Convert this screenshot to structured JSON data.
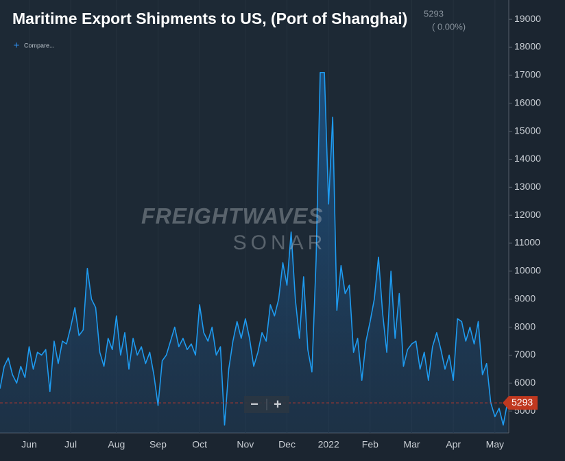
{
  "chart_data": {
    "type": "line",
    "title": "Maritime Export Shipments to US, (Port of Shanghai)",
    "header_value": "5293",
    "header_change": "( 0.00%)",
    "compare_label": "Compare...",
    "watermark": [
      "FREIGHTWAVES",
      "SONAR"
    ],
    "zoom_buttons": [
      "−",
      "+"
    ],
    "last_value": 5293,
    "color": "#1e9bf0",
    "categories": [
      null,
      null,
      null,
      null,
      null,
      null,
      null,
      "Jun",
      null,
      null,
      null,
      null,
      null,
      null,
      null,
      null,
      null,
      "Jul",
      null,
      null,
      null,
      null,
      null,
      null,
      null,
      null,
      null,
      null,
      "Aug",
      null,
      null,
      null,
      null,
      null,
      null,
      null,
      null,
      null,
      "Sep",
      null,
      null,
      null,
      null,
      null,
      null,
      null,
      null,
      null,
      "Oct",
      null,
      null,
      null,
      null,
      null,
      null,
      null,
      null,
      null,
      null,
      "Nov",
      null,
      null,
      null,
      null,
      null,
      null,
      null,
      null,
      null,
      "Dec",
      null,
      null,
      null,
      null,
      null,
      null,
      null,
      null,
      null,
      "2022",
      null,
      null,
      null,
      null,
      null,
      null,
      null,
      null,
      null,
      "Feb",
      null,
      null,
      null,
      null,
      null,
      null,
      null,
      null,
      null,
      "Mar",
      null,
      null,
      null,
      null,
      null,
      null,
      null,
      null,
      null,
      "Apr",
      null,
      null,
      null,
      null,
      null,
      null,
      null,
      null,
      null,
      "May",
      null,
      null,
      null
    ],
    "values": [
      5800,
      6600,
      6900,
      6300,
      6000,
      6600,
      6200,
      7300,
      6500,
      7100,
      7000,
      7200,
      5700,
      7500,
      6700,
      7500,
      7400,
      8000,
      8700,
      7700,
      7900,
      10100,
      9000,
      8700,
      7100,
      6600,
      7600,
      7200,
      8400,
      7000,
      7800,
      6500,
      7600,
      7000,
      7300,
      6700,
      7100,
      6300,
      5200,
      6800,
      7000,
      7500,
      8000,
      7300,
      7600,
      7200,
      7400,
      7000,
      8800,
      7800,
      7500,
      8000,
      7000,
      7300,
      4500,
      6500,
      7500,
      8200,
      7600,
      8300,
      7600,
      6600,
      7100,
      7800,
      7500,
      8800,
      8400,
      9000,
      10300,
      9500,
      11400,
      9000,
      7600,
      9800,
      7200,
      6400,
      10400,
      17100,
      17100,
      12400,
      15500,
      8600,
      10200,
      9200,
      9500,
      7100,
      7600,
      6100,
      7500,
      8200,
      9000,
      10500,
      8500,
      7100,
      10000,
      7600,
      9200,
      6600,
      7200,
      7400,
      7500,
      6500,
      7100,
      6100,
      7300,
      7800,
      7200,
      6500,
      7000,
      6100,
      8300,
      8200,
      7500,
      8000,
      7400,
      8200,
      6300,
      6700,
      5300,
      4800,
      5100,
      4500,
      5293
    ],
    "ylim": [
      4220,
      19690
    ],
    "yticks": [
      5000,
      6000,
      7000,
      8000,
      9000,
      10000,
      11000,
      12000,
      13000,
      14000,
      15000,
      16000,
      17000,
      18000,
      19000
    ],
    "grid": true
  }
}
